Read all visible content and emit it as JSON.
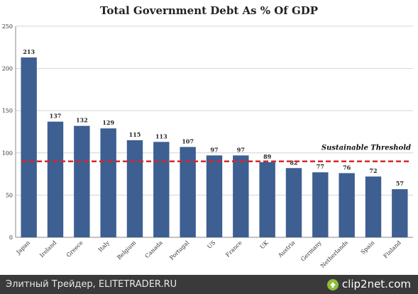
{
  "chart_data": {
    "type": "bar",
    "title": "Total Government Debt As % Of GDP",
    "categories": [
      "Japan",
      "Ireland",
      "Greece",
      "Italy",
      "Belgium",
      "Canada",
      "Portugal",
      "US",
      "France",
      "UK",
      "Austria",
      "Germany",
      "Netherlands",
      "Spain",
      "Finland"
    ],
    "values": [
      213,
      137,
      132,
      129,
      115,
      113,
      107,
      97,
      97,
      89,
      82,
      77,
      76,
      72,
      57
    ],
    "ylim": [
      0,
      250
    ],
    "yticks": [
      0,
      50,
      100,
      150,
      200,
      250
    ],
    "grid": true,
    "bar_color": "#3d5f92",
    "threshold": {
      "label": "Sustainable  Threshold",
      "value": 90,
      "color": "#d9252a",
      "style": "dashed"
    },
    "xlabel": "",
    "ylabel": ""
  },
  "footer": {
    "text": "Элитный Трейдер, ELITETRADER.RU",
    "logo_text": "clip2net.com",
    "background": "#3a3a3a"
  }
}
